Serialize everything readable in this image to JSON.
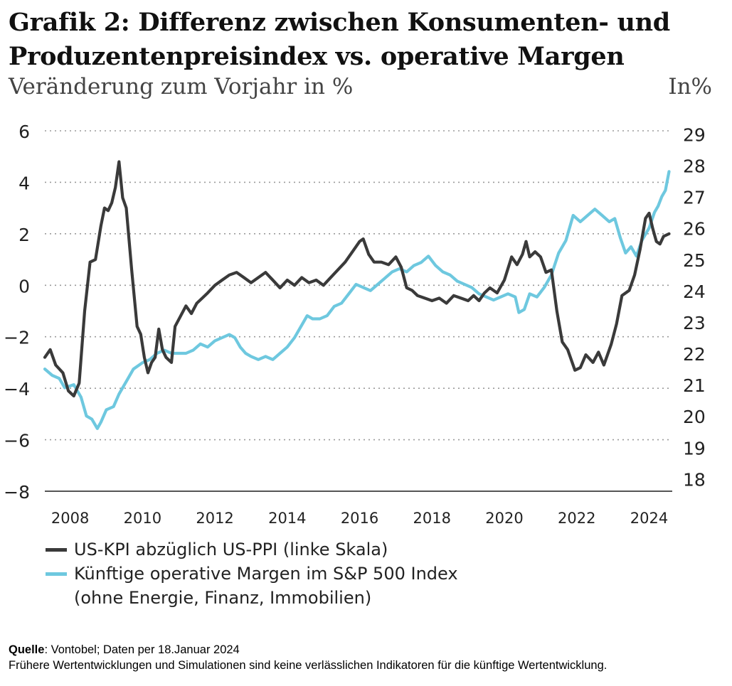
{
  "header": {
    "title_lines": [
      "Grafik 2: Differenz zwischen Konsumenten- und",
      "Produzentenpreisindex vs. operative Margen"
    ],
    "subtitle": "Veränderung zum Vorjahr in %",
    "right_unit": "In%"
  },
  "chart_data": {
    "type": "line",
    "x_range": [
      2007.3,
      2024.6
    ],
    "x_ticks": [
      "2008",
      "2010",
      "2012",
      "2014",
      "2016",
      "2018",
      "2020",
      "2022",
      "2024"
    ],
    "y_left": {
      "range": [
        -8,
        6
      ],
      "ticks": [
        "6",
        "4",
        "2",
        "0",
        "-2",
        "-4",
        "-6",
        "-8"
      ]
    },
    "y_right": {
      "range": [
        17.6,
        29.1
      ],
      "ticks": [
        "29",
        "28",
        "27",
        "26",
        "25",
        "24",
        "23",
        "22",
        "21",
        "20",
        "19",
        "18"
      ]
    },
    "grid": "horizontal dotted",
    "series": [
      {
        "name": "US-KPI abzüglich US-PPI (linke Skala)",
        "axis": "left",
        "color": "#3a3a3a",
        "points": [
          [
            2007.3,
            -2.8
          ],
          [
            2007.45,
            -2.5
          ],
          [
            2007.6,
            -3.1
          ],
          [
            2007.8,
            -3.4
          ],
          [
            2007.95,
            -4.1
          ],
          [
            2008.1,
            -4.3
          ],
          [
            2008.25,
            -3.8
          ],
          [
            2008.4,
            -1.0
          ],
          [
            2008.55,
            0.9
          ],
          [
            2008.7,
            1.0
          ],
          [
            2008.85,
            2.3
          ],
          [
            2008.95,
            3.0
          ],
          [
            2009.05,
            2.9
          ],
          [
            2009.15,
            3.2
          ],
          [
            2009.25,
            3.8
          ],
          [
            2009.35,
            4.8
          ],
          [
            2009.45,
            3.4
          ],
          [
            2009.55,
            3.0
          ],
          [
            2009.7,
            0.6
          ],
          [
            2009.85,
            -1.6
          ],
          [
            2009.95,
            -1.9
          ],
          [
            2010.05,
            -2.8
          ],
          [
            2010.15,
            -3.4
          ],
          [
            2010.25,
            -3.0
          ],
          [
            2010.35,
            -2.8
          ],
          [
            2010.45,
            -1.7
          ],
          [
            2010.55,
            -2.5
          ],
          [
            2010.65,
            -2.8
          ],
          [
            2010.8,
            -3.0
          ],
          [
            2010.9,
            -1.6
          ],
          [
            2011.05,
            -1.2
          ],
          [
            2011.2,
            -0.8
          ],
          [
            2011.35,
            -1.1
          ],
          [
            2011.5,
            -0.7
          ],
          [
            2011.65,
            -0.5
          ],
          [
            2011.8,
            -0.3
          ],
          [
            2012.0,
            0.0
          ],
          [
            2012.2,
            0.2
          ],
          [
            2012.4,
            0.4
          ],
          [
            2012.6,
            0.5
          ],
          [
            2012.8,
            0.3
          ],
          [
            2013.0,
            0.1
          ],
          [
            2013.2,
            0.3
          ],
          [
            2013.4,
            0.5
          ],
          [
            2013.6,
            0.2
          ],
          [
            2013.8,
            -0.1
          ],
          [
            2014.0,
            0.2
          ],
          [
            2014.2,
            0.0
          ],
          [
            2014.4,
            0.3
          ],
          [
            2014.6,
            0.1
          ],
          [
            2014.8,
            0.2
          ],
          [
            2015.0,
            0.0
          ],
          [
            2015.2,
            0.3
          ],
          [
            2015.4,
            0.6
          ],
          [
            2015.6,
            0.9
          ],
          [
            2015.8,
            1.3
          ],
          [
            2016.0,
            1.7
          ],
          [
            2016.1,
            1.8
          ],
          [
            2016.25,
            1.2
          ],
          [
            2016.4,
            0.9
          ],
          [
            2016.6,
            0.9
          ],
          [
            2016.8,
            0.8
          ],
          [
            2017.0,
            1.1
          ],
          [
            2017.15,
            0.7
          ],
          [
            2017.3,
            -0.1
          ],
          [
            2017.45,
            -0.2
          ],
          [
            2017.6,
            -0.4
          ],
          [
            2017.8,
            -0.5
          ],
          [
            2018.0,
            -0.6
          ],
          [
            2018.2,
            -0.5
          ],
          [
            2018.4,
            -0.7
          ],
          [
            2018.6,
            -0.4
          ],
          [
            2018.8,
            -0.5
          ],
          [
            2019.0,
            -0.6
          ],
          [
            2019.15,
            -0.4
          ],
          [
            2019.3,
            -0.6
          ],
          [
            2019.45,
            -0.3
          ],
          [
            2019.6,
            -0.1
          ],
          [
            2019.8,
            -0.3
          ],
          [
            2020.0,
            0.2
          ],
          [
            2020.2,
            1.1
          ],
          [
            2020.35,
            0.8
          ],
          [
            2020.5,
            1.2
          ],
          [
            2020.6,
            1.7
          ],
          [
            2020.7,
            1.1
          ],
          [
            2020.85,
            1.3
          ],
          [
            2021.0,
            1.1
          ],
          [
            2021.15,
            0.5
          ],
          [
            2021.3,
            0.6
          ],
          [
            2021.45,
            -1.0
          ],
          [
            2021.6,
            -2.2
          ],
          [
            2021.75,
            -2.5
          ],
          [
            2021.95,
            -3.3
          ],
          [
            2022.1,
            -3.2
          ],
          [
            2022.25,
            -2.7
          ],
          [
            2022.45,
            -3.0
          ],
          [
            2022.6,
            -2.6
          ],
          [
            2022.75,
            -3.1
          ],
          [
            2022.95,
            -2.3
          ],
          [
            2023.1,
            -1.5
          ],
          [
            2023.25,
            -0.4
          ],
          [
            2023.45,
            -0.2
          ],
          [
            2023.6,
            0.4
          ],
          [
            2023.75,
            1.4
          ],
          [
            2023.9,
            2.6
          ],
          [
            2024.0,
            2.8
          ],
          [
            2024.1,
            2.2
          ],
          [
            2024.2,
            1.7
          ],
          [
            2024.3,
            1.6
          ],
          [
            2024.4,
            1.9
          ],
          [
            2024.55,
            2.0
          ]
        ]
      },
      {
        "name": "Künftige operative Margen im S&P 500 Index",
        "name_note": "(ohne Energie, Finanz, Immobilien)",
        "axis": "right",
        "color": "#6ec8df",
        "points": [
          [
            2007.3,
            21.5
          ],
          [
            2007.5,
            21.3
          ],
          [
            2007.7,
            21.2
          ],
          [
            2007.85,
            20.9
          ],
          [
            2008.1,
            21.0
          ],
          [
            2008.3,
            20.6
          ],
          [
            2008.45,
            20.0
          ],
          [
            2008.6,
            19.9
          ],
          [
            2008.75,
            19.6
          ],
          [
            2008.85,
            19.8
          ],
          [
            2009.0,
            20.2
          ],
          [
            2009.2,
            20.3
          ],
          [
            2009.35,
            20.7
          ],
          [
            2009.55,
            21.1
          ],
          [
            2009.75,
            21.5
          ],
          [
            2010.0,
            21.7
          ],
          [
            2010.2,
            21.8
          ],
          [
            2010.4,
            22.0
          ],
          [
            2010.6,
            22.1
          ],
          [
            2010.8,
            22.0
          ],
          [
            2011.0,
            22.0
          ],
          [
            2011.2,
            22.0
          ],
          [
            2011.4,
            22.1
          ],
          [
            2011.6,
            22.3
          ],
          [
            2011.8,
            22.2
          ],
          [
            2012.0,
            22.4
          ],
          [
            2012.2,
            22.5
          ],
          [
            2012.4,
            22.6
          ],
          [
            2012.55,
            22.5
          ],
          [
            2012.7,
            22.2
          ],
          [
            2012.85,
            22.0
          ],
          [
            2013.0,
            21.9
          ],
          [
            2013.2,
            21.8
          ],
          [
            2013.4,
            21.9
          ],
          [
            2013.6,
            21.8
          ],
          [
            2013.8,
            22.0
          ],
          [
            2014.0,
            22.2
          ],
          [
            2014.2,
            22.5
          ],
          [
            2014.4,
            22.9
          ],
          [
            2014.55,
            23.2
          ],
          [
            2014.7,
            23.1
          ],
          [
            2014.9,
            23.1
          ],
          [
            2015.1,
            23.2
          ],
          [
            2015.3,
            23.5
          ],
          [
            2015.5,
            23.6
          ],
          [
            2015.7,
            23.9
          ],
          [
            2015.9,
            24.2
          ],
          [
            2016.1,
            24.1
          ],
          [
            2016.3,
            24.0
          ],
          [
            2016.5,
            24.2
          ],
          [
            2016.7,
            24.4
          ],
          [
            2016.9,
            24.6
          ],
          [
            2017.1,
            24.7
          ],
          [
            2017.3,
            24.6
          ],
          [
            2017.5,
            24.8
          ],
          [
            2017.7,
            24.9
          ],
          [
            2017.9,
            25.1
          ],
          [
            2018.1,
            24.8
          ],
          [
            2018.3,
            24.6
          ],
          [
            2018.5,
            24.5
          ],
          [
            2018.7,
            24.3
          ],
          [
            2018.9,
            24.2
          ],
          [
            2019.1,
            24.1
          ],
          [
            2019.3,
            23.9
          ],
          [
            2019.5,
            23.8
          ],
          [
            2019.7,
            23.7
          ],
          [
            2019.9,
            23.8
          ],
          [
            2020.1,
            23.9
          ],
          [
            2020.3,
            23.8
          ],
          [
            2020.4,
            23.3
          ],
          [
            2020.55,
            23.4
          ],
          [
            2020.7,
            23.9
          ],
          [
            2020.9,
            23.8
          ],
          [
            2021.1,
            24.1
          ],
          [
            2021.3,
            24.5
          ],
          [
            2021.5,
            25.2
          ],
          [
            2021.7,
            25.6
          ],
          [
            2021.9,
            26.4
          ],
          [
            2022.1,
            26.2
          ],
          [
            2022.3,
            26.4
          ],
          [
            2022.5,
            26.6
          ],
          [
            2022.7,
            26.4
          ],
          [
            2022.9,
            26.2
          ],
          [
            2023.05,
            26.3
          ],
          [
            2023.2,
            25.7
          ],
          [
            2023.35,
            25.2
          ],
          [
            2023.5,
            25.4
          ],
          [
            2023.65,
            25.1
          ],
          [
            2023.8,
            25.6
          ],
          [
            2024.0,
            26.0
          ],
          [
            2024.15,
            26.5
          ],
          [
            2024.25,
            26.7
          ],
          [
            2024.35,
            27.0
          ],
          [
            2024.45,
            27.2
          ],
          [
            2024.55,
            27.8
          ]
        ]
      }
    ]
  },
  "footer": {
    "source_label": "Quelle",
    "source_text": ": Vontobel; Daten per 18.Januar 2024",
    "disclaimer": "Frühere Wertentwicklungen und Simulationen sind keine verlässlichen Indikatoren für die künftige Wertentwicklung."
  }
}
